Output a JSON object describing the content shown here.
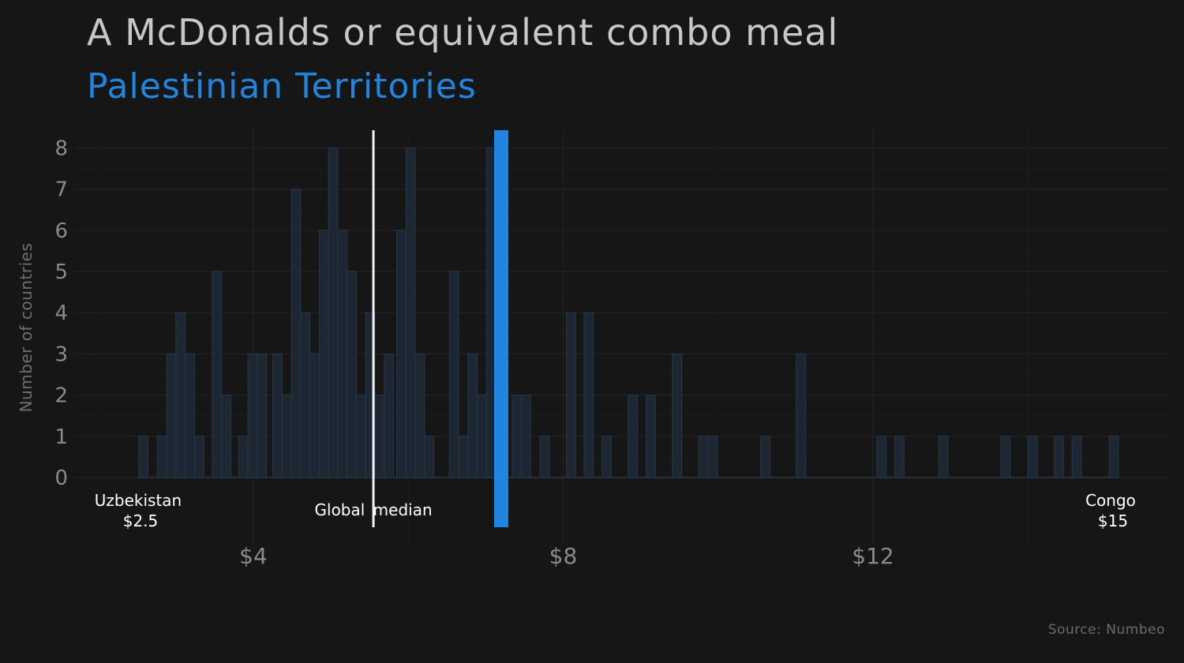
{
  "title": "A McDonalds or equivalent combo meal",
  "subtitle": "Palestinian Territories",
  "source": "Source: Numbeo",
  "colors": {
    "highlight": "#1f85de",
    "median": "#f2f2f2",
    "bars_fill": "#1c2733",
    "bars_stroke": "#273746"
  },
  "chart_data": {
    "type": "bar",
    "title": "A McDonalds or equivalent combo meal",
    "subtitle": "Palestinian Territories",
    "ylabel": "Number of countries",
    "xlabel": "",
    "bin_width": 0.12,
    "x_ticks": [
      {
        "value": 4,
        "label": "$4"
      },
      {
        "value": 8,
        "label": "$8"
      },
      {
        "value": 12,
        "label": "$12"
      }
    ],
    "y_ticks": [
      0,
      1,
      2,
      3,
      4,
      5,
      6,
      7,
      8
    ],
    "xlim": [
      2.0,
      15.65
    ],
    "ylim": [
      0,
      8.4
    ],
    "bins": [
      {
        "x": 2.52,
        "count": 1
      },
      {
        "x": 2.76,
        "count": 1
      },
      {
        "x": 2.88,
        "count": 3
      },
      {
        "x": 3.0,
        "count": 4
      },
      {
        "x": 3.12,
        "count": 3
      },
      {
        "x": 3.24,
        "count": 1
      },
      {
        "x": 3.47,
        "count": 5
      },
      {
        "x": 3.59,
        "count": 2
      },
      {
        "x": 3.81,
        "count": 1
      },
      {
        "x": 3.93,
        "count": 3
      },
      {
        "x": 4.05,
        "count": 3
      },
      {
        "x": 4.25,
        "count": 3
      },
      {
        "x": 4.37,
        "count": 2
      },
      {
        "x": 4.49,
        "count": 7
      },
      {
        "x": 4.61,
        "count": 4
      },
      {
        "x": 4.73,
        "count": 3
      },
      {
        "x": 4.85,
        "count": 6
      },
      {
        "x": 4.97,
        "count": 8
      },
      {
        "x": 5.09,
        "count": 6
      },
      {
        "x": 5.21,
        "count": 5
      },
      {
        "x": 5.33,
        "count": 2
      },
      {
        "x": 5.45,
        "count": 4
      },
      {
        "x": 5.57,
        "count": 2
      },
      {
        "x": 5.69,
        "count": 3
      },
      {
        "x": 5.85,
        "count": 6
      },
      {
        "x": 5.97,
        "count": 8
      },
      {
        "x": 6.09,
        "count": 3
      },
      {
        "x": 6.21,
        "count": 1
      },
      {
        "x": 6.53,
        "count": 5
      },
      {
        "x": 6.65,
        "count": 1
      },
      {
        "x": 6.77,
        "count": 3
      },
      {
        "x": 6.89,
        "count": 2
      },
      {
        "x": 7.01,
        "count": 8
      },
      {
        "x": 7.34,
        "count": 2
      },
      {
        "x": 7.46,
        "count": 2
      },
      {
        "x": 7.7,
        "count": 1
      },
      {
        "x": 8.04,
        "count": 4
      },
      {
        "x": 8.27,
        "count": 4
      },
      {
        "x": 8.5,
        "count": 1
      },
      {
        "x": 8.84,
        "count": 2
      },
      {
        "x": 9.07,
        "count": 2
      },
      {
        "x": 9.41,
        "count": 3
      },
      {
        "x": 9.75,
        "count": 1
      },
      {
        "x": 9.87,
        "count": 1
      },
      {
        "x": 10.55,
        "count": 1
      },
      {
        "x": 11.01,
        "count": 3
      },
      {
        "x": 12.05,
        "count": 1
      },
      {
        "x": 12.28,
        "count": 1
      },
      {
        "x": 12.85,
        "count": 1
      },
      {
        "x": 13.65,
        "count": 1
      },
      {
        "x": 14.0,
        "count": 1
      },
      {
        "x": 14.34,
        "count": 1
      },
      {
        "x": 14.57,
        "count": 1
      },
      {
        "x": 15.05,
        "count": 1
      }
    ],
    "median": {
      "value": 5.55,
      "label": "Global median"
    },
    "highlight": {
      "value": 7.2,
      "label": "Palestinian Territories"
    },
    "annotations": [
      {
        "name": "Uzbekistan",
        "value": "$2.5",
        "x": 2.52
      },
      {
        "name": "Congo",
        "value": "$15",
        "x": 15.0
      }
    ],
    "grid": true
  }
}
